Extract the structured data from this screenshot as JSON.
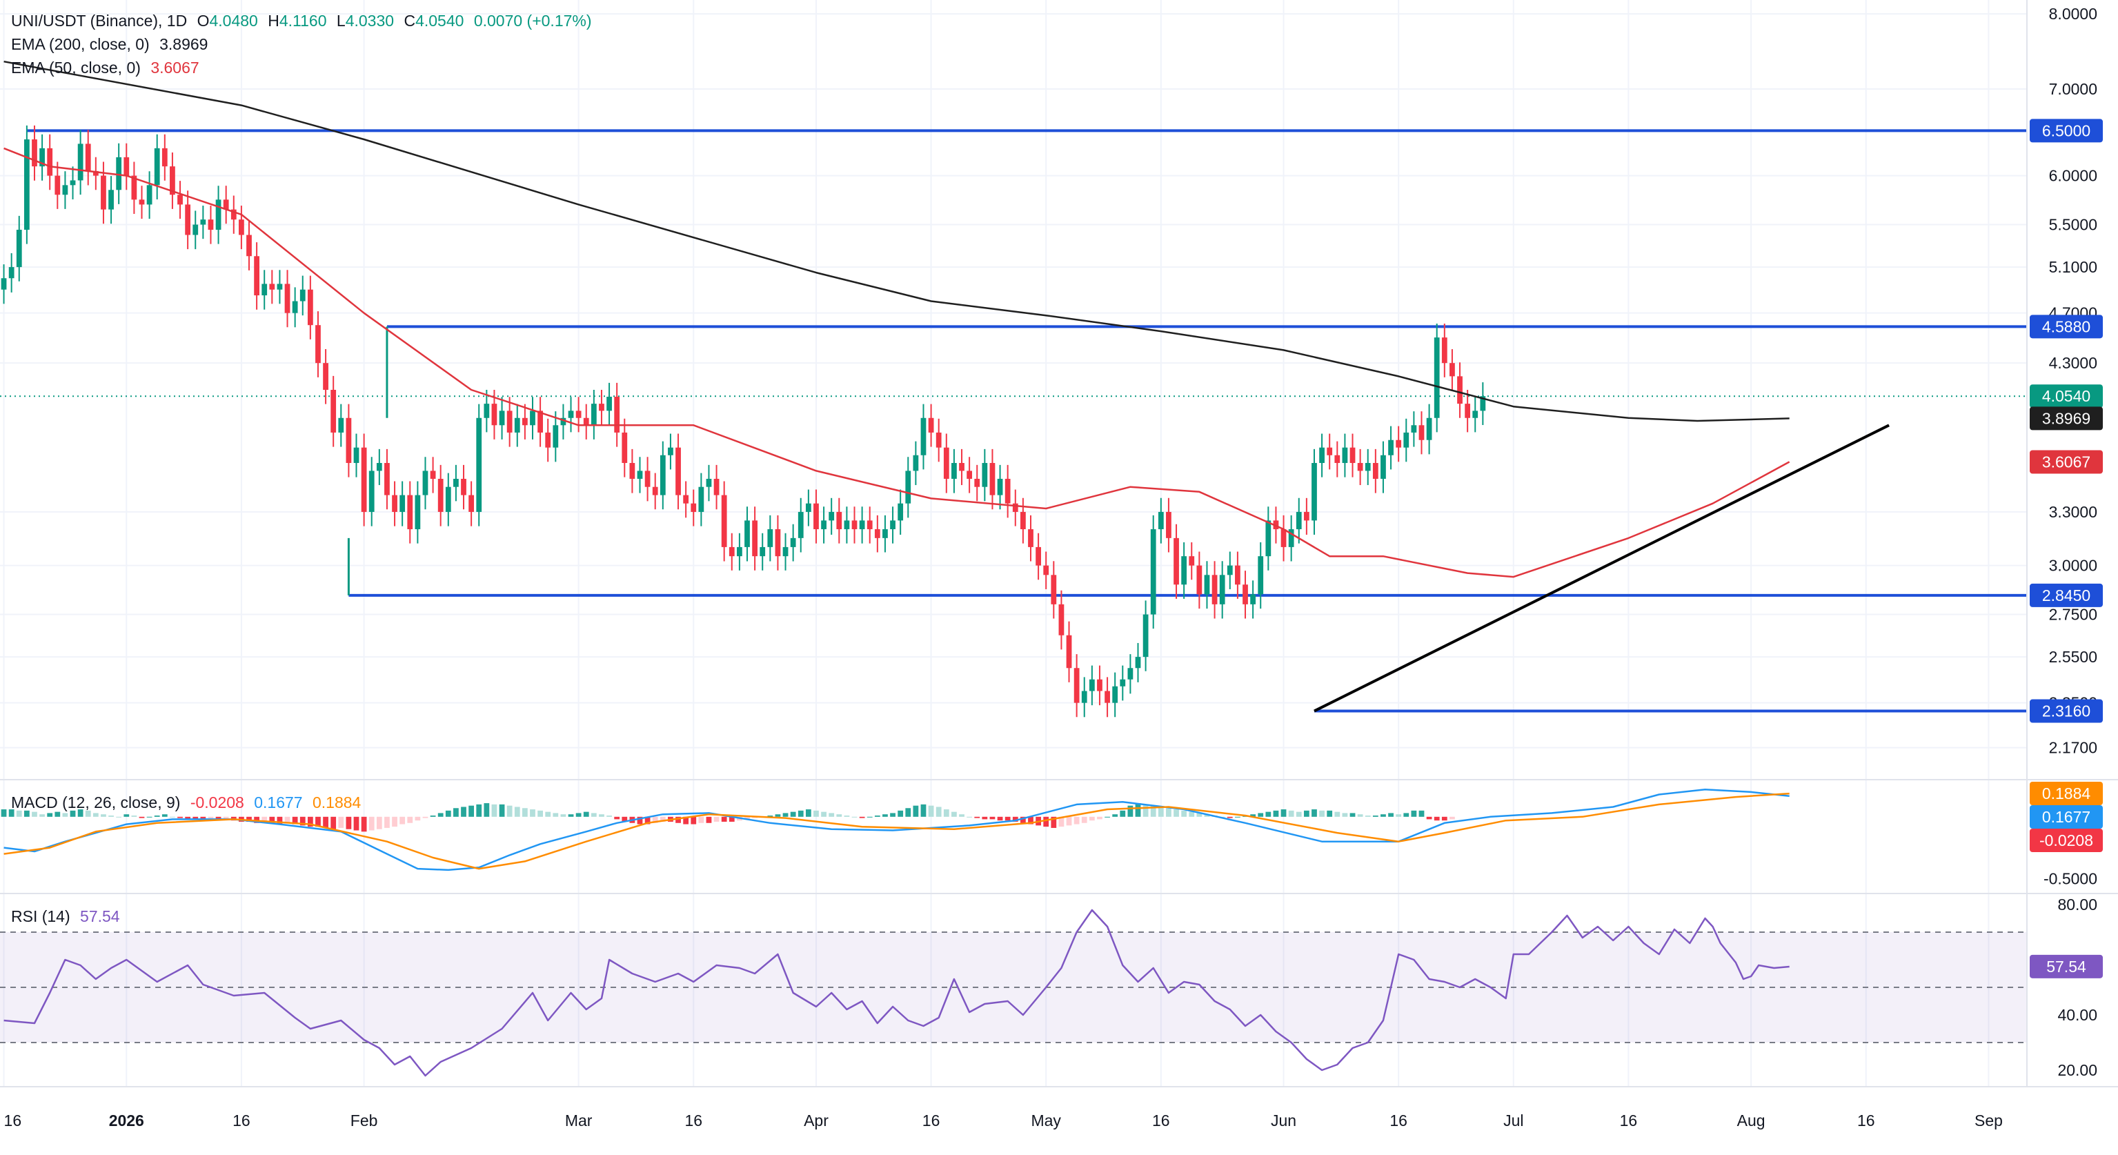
{
  "colors": {
    "up": "#089981",
    "down": "#f23645",
    "hline": "#1e4fd8",
    "ema200": "#1f1f1f",
    "ema50": "#e0353d",
    "macd": "#2196f3",
    "signal": "#ff8c00",
    "rsi": "#7e57c2",
    "trendline": "#000000"
  },
  "header": {
    "symbol": "UNI/USDT (Binance), 1D",
    "o_label": "O",
    "o": "4.0480",
    "h_label": "H",
    "h": "4.1160",
    "l_label": "L",
    "l": "4.0330",
    "c_label": "C",
    "c": "4.0540",
    "change": "0.0070 (+0.17%)",
    "ema200_label": "EMA (200, close, 0)",
    "ema200_value": "3.8969",
    "ema50_label": "EMA (50, close, 0)",
    "ema50_value": "3.6067"
  },
  "macd_legend": {
    "label": "MACD (12, 26, close, 9)",
    "hist": "-0.0208",
    "macd": "0.1677",
    "signal": "0.1884"
  },
  "rsi_legend": {
    "label": "RSI (14)",
    "value": "57.54"
  },
  "chart_data": [
    {
      "type": "candlestick",
      "title": "UNI/USDT (Binance), 1D",
      "y_scale": "log",
      "ylim": [
        2.05,
        8.2
      ],
      "y_ticks": [
        "8.0000",
        "7.0000",
        "6.0000",
        "5.5000",
        "5.1000",
        "4.7000",
        "4.3000",
        "3.3000",
        "3.0000",
        "2.7500",
        "2.5500",
        "2.3500",
        "2.1700"
      ],
      "x_ticks": [
        "16",
        "2026",
        "16",
        "Feb",
        "Mar",
        "16",
        "Apr",
        "16",
        "May",
        "16",
        "Jun",
        "16",
        "Jul",
        "16",
        "Aug",
        "16",
        "Sep"
      ],
      "x_tick_days": [
        -16,
        0,
        15,
        31,
        59,
        74,
        90,
        105,
        120,
        135,
        151,
        166,
        181,
        196,
        212,
        227,
        243
      ],
      "x_range_days": [
        -16.5,
        248
      ],
      "candle_days": [
        -16,
        217
      ],
      "closes": [
        5.0,
        5.1,
        5.45,
        6.4,
        6.1,
        6.3,
        6.0,
        5.8,
        5.9,
        5.95,
        6.35,
        6.05,
        6.0,
        5.65,
        5.85,
        6.2,
        6.0,
        5.75,
        5.7,
        5.9,
        6.3,
        6.1,
        5.8,
        5.7,
        5.4,
        5.5,
        5.55,
        5.45,
        5.75,
        5.65,
        5.55,
        5.4,
        5.2,
        4.85,
        4.95,
        4.9,
        4.95,
        4.7,
        4.8,
        4.9,
        4.6,
        4.3,
        4.1,
        3.8,
        3.9,
        3.6,
        3.7,
        3.3,
        3.55,
        3.6,
        3.4,
        3.3,
        3.4,
        3.2,
        3.4,
        3.55,
        3.5,
        3.3,
        3.45,
        3.5,
        3.4,
        3.3,
        3.9,
        4.0,
        3.85,
        3.95,
        3.8,
        3.9,
        3.85,
        3.95,
        3.8,
        3.7,
        3.85,
        3.9,
        3.95,
        3.9,
        3.85,
        4.0,
        3.95,
        4.05,
        3.8,
        3.6,
        3.5,
        3.55,
        3.45,
        3.4,
        3.65,
        3.7,
        3.4,
        3.35,
        3.3,
        3.45,
        3.5,
        3.4,
        3.1,
        3.05,
        3.1,
        3.25,
        3.05,
        3.1,
        3.2,
        3.05,
        3.1,
        3.15,
        3.3,
        3.35,
        3.2,
        3.25,
        3.3,
        3.2,
        3.25,
        3.2,
        3.25,
        3.2,
        3.15,
        3.2,
        3.25,
        3.35,
        3.55,
        3.65,
        3.9,
        3.8,
        3.7,
        3.5,
        3.6,
        3.55,
        3.5,
        3.45,
        3.6,
        3.4,
        3.5,
        3.35,
        3.3,
        3.2,
        3.1,
        3.0,
        2.95,
        2.8,
        2.65,
        2.5,
        2.35,
        2.4,
        2.45,
        2.4,
        2.35,
        2.42,
        2.45,
        2.5,
        2.55,
        2.75,
        3.2,
        3.3,
        3.15,
        2.9,
        3.05,
        3.0,
        2.85,
        2.95,
        2.8,
        2.95,
        3.0,
        2.9,
        2.8,
        2.85,
        3.05,
        3.25,
        3.2,
        3.1,
        3.2,
        3.3,
        3.25,
        3.6,
        3.7,
        3.65,
        3.6,
        3.7,
        3.6,
        3.55,
        3.6,
        3.5,
        3.65,
        3.75,
        3.7,
        3.8,
        3.85,
        3.75,
        3.9,
        4.5,
        4.3,
        4.2,
        4.0,
        3.9,
        3.95,
        4.054
      ],
      "ema200_points": [
        [
          -16,
          7.35
        ],
        [
          -5,
          7.15
        ],
        [
          15,
          6.8
        ],
        [
          31,
          6.4
        ],
        [
          59,
          5.7
        ],
        [
          90,
          5.05
        ],
        [
          105,
          4.8
        ],
        [
          120,
          4.68
        ],
        [
          135,
          4.55
        ],
        [
          151,
          4.4
        ],
        [
          166,
          4.2
        ],
        [
          181,
          3.98
        ],
        [
          196,
          3.9
        ],
        [
          205,
          3.88
        ],
        [
          217,
          3.897
        ]
      ],
      "ema50_points": [
        [
          -16,
          6.3
        ],
        [
          -10,
          6.1
        ],
        [
          0,
          6.0
        ],
        [
          15,
          5.6
        ],
        [
          31,
          4.7
        ],
        [
          45,
          4.1
        ],
        [
          59,
          3.85
        ],
        [
          74,
          3.85
        ],
        [
          90,
          3.55
        ],
        [
          105,
          3.38
        ],
        [
          120,
          3.32
        ],
        [
          131,
          3.45
        ],
        [
          140,
          3.42
        ],
        [
          151,
          3.2
        ],
        [
          157,
          3.05
        ],
        [
          164,
          3.05
        ],
        [
          175,
          2.96
        ],
        [
          181,
          2.94
        ],
        [
          196,
          3.15
        ],
        [
          207,
          3.35
        ],
        [
          217,
          3.607
        ]
      ],
      "horizontal_levels": [
        {
          "value": 6.5,
          "label": "6.5000",
          "from_day": -13
        },
        {
          "value": 4.588,
          "label": "4.5880",
          "from_day": 34
        },
        {
          "value": 2.845,
          "label": "2.8450",
          "from_day": 29
        },
        {
          "value": 2.316,
          "label": "2.3160",
          "from_day": 155
        }
      ],
      "trendline": {
        "from": [
          155,
          2.316
        ],
        "to": [
          230,
          3.85
        ]
      },
      "last_price": {
        "value": 4.054,
        "label": "4.0540"
      },
      "price_labels": [
        {
          "value": 3.8969,
          "label": "3.8969"
        },
        {
          "value": 3.6067,
          "label": "3.6067"
        }
      ]
    },
    {
      "type": "line",
      "title": "MACD (12, 26, close, 9)",
      "ylim": [
        -0.62,
        0.3
      ],
      "y_ticks": [
        {
          "value": -0.5,
          "label": "-0.5000"
        }
      ],
      "histogram_start_day": -16,
      "histogram": [
        0.06,
        0.06,
        0.05,
        0.05,
        0.04,
        0.02,
        0.03,
        0.04,
        0.03,
        0.05,
        0.06,
        0.05,
        0.03,
        0.02,
        0.01,
        0.0,
        0.02,
        0.01,
        -0.01,
        0.0,
        0.01,
        0.02,
        0.0,
        -0.01,
        -0.02,
        -0.02,
        -0.03,
        -0.02,
        -0.03,
        -0.02,
        -0.03,
        -0.04,
        -0.04,
        -0.05,
        -0.04,
        -0.05,
        -0.06,
        -0.05,
        -0.06,
        -0.07,
        -0.08,
        -0.08,
        -0.09,
        -0.1,
        -0.09,
        -0.1,
        -0.11,
        -0.12,
        -0.11,
        -0.1,
        -0.09,
        -0.08,
        -0.06,
        -0.05,
        -0.03,
        -0.01,
        0.01,
        0.03,
        0.05,
        0.07,
        0.08,
        0.09,
        0.1,
        0.11,
        0.1,
        0.1,
        0.09,
        0.08,
        0.07,
        0.06,
        0.05,
        0.04,
        0.03,
        0.02,
        0.02,
        0.03,
        0.04,
        0.03,
        0.02,
        0.01,
        -0.02,
        -0.04,
        -0.05,
        -0.06,
        -0.06,
        -0.05,
        -0.04,
        -0.04,
        -0.05,
        -0.06,
        -0.06,
        -0.05,
        -0.05,
        -0.04,
        -0.04,
        -0.04,
        -0.03,
        -0.02,
        -0.01,
        0.0,
        0.01,
        0.02,
        0.03,
        0.04,
        0.05,
        0.06,
        0.05,
        0.04,
        0.03,
        0.02,
        0.01,
        0.0,
        -0.01,
        0.0,
        0.01,
        0.02,
        0.03,
        0.05,
        0.07,
        0.09,
        0.1,
        0.09,
        0.08,
        0.06,
        0.04,
        0.02,
        0.0,
        -0.01,
        -0.02,
        -0.02,
        -0.03,
        -0.03,
        -0.04,
        -0.05,
        -0.06,
        -0.07,
        -0.08,
        -0.09,
        -0.08,
        -0.07,
        -0.06,
        -0.05,
        -0.03,
        -0.02,
        0.0,
        0.02,
        0.05,
        0.09,
        0.11,
        0.1,
        0.09,
        0.08,
        0.07,
        0.06,
        0.05,
        0.04,
        0.03,
        0.02,
        0.01,
        0.0,
        -0.01,
        0.0,
        0.01,
        0.02,
        0.03,
        0.04,
        0.05,
        0.06,
        0.05,
        0.04,
        0.05,
        0.06,
        0.05,
        0.05,
        0.04,
        0.03,
        0.03,
        0.02,
        0.01,
        0.01,
        0.02,
        0.03,
        0.02,
        0.03,
        0.05,
        0.05,
        -0.02,
        -0.03,
        -0.03,
        -0.02
      ],
      "macd_points": [
        [
          -16,
          -0.25
        ],
        [
          -12,
          -0.28
        ],
        [
          -8,
          -0.2
        ],
        [
          0,
          -0.06
        ],
        [
          6,
          -0.02
        ],
        [
          14,
          -0.02
        ],
        [
          20,
          -0.06
        ],
        [
          28,
          -0.12
        ],
        [
          34,
          -0.3
        ],
        [
          38,
          -0.42
        ],
        [
          42,
          -0.43
        ],
        [
          46,
          -0.41
        ],
        [
          50,
          -0.31
        ],
        [
          54,
          -0.22
        ],
        [
          60,
          -0.12
        ],
        [
          64,
          -0.05
        ],
        [
          70,
          0.02
        ],
        [
          76,
          0.03
        ],
        [
          84,
          -0.05
        ],
        [
          92,
          -0.1
        ],
        [
          100,
          -0.11
        ],
        [
          110,
          -0.07
        ],
        [
          116,
          -0.03
        ],
        [
          124,
          0.1
        ],
        [
          130,
          0.12
        ],
        [
          138,
          0.06
        ],
        [
          146,
          -0.05
        ],
        [
          156,
          -0.2
        ],
        [
          166,
          -0.2
        ],
        [
          172,
          -0.05
        ],
        [
          178,
          0.0
        ],
        [
          186,
          0.03
        ],
        [
          194,
          0.08
        ],
        [
          200,
          0.18
        ],
        [
          206,
          0.22
        ],
        [
          212,
          0.2
        ],
        [
          217,
          0.168
        ]
      ],
      "signal_points": [
        [
          -16,
          -0.3
        ],
        [
          -10,
          -0.25
        ],
        [
          -4,
          -0.12
        ],
        [
          4,
          -0.05
        ],
        [
          14,
          -0.02
        ],
        [
          24,
          -0.06
        ],
        [
          34,
          -0.2
        ],
        [
          40,
          -0.33
        ],
        [
          46,
          -0.42
        ],
        [
          52,
          -0.36
        ],
        [
          60,
          -0.2
        ],
        [
          68,
          -0.05
        ],
        [
          76,
          0.02
        ],
        [
          86,
          -0.01
        ],
        [
          96,
          -0.08
        ],
        [
          108,
          -0.1
        ],
        [
          118,
          -0.05
        ],
        [
          128,
          0.06
        ],
        [
          136,
          0.08
        ],
        [
          146,
          0.01
        ],
        [
          158,
          -0.13
        ],
        [
          166,
          -0.2
        ],
        [
          172,
          -0.13
        ],
        [
          180,
          -0.03
        ],
        [
          190,
          0.0
        ],
        [
          200,
          0.1
        ],
        [
          210,
          0.16
        ],
        [
          217,
          0.188
        ]
      ],
      "value_labels": [
        {
          "value": 0.1884,
          "label": "0.1884",
          "series": "signal"
        },
        {
          "value": 0.1677,
          "label": "0.1677",
          "series": "macd"
        },
        {
          "value": -0.0208,
          "label": "-0.0208",
          "series": "hist"
        }
      ]
    },
    {
      "type": "line",
      "title": "RSI (14)",
      "ylim": [
        14,
        84
      ],
      "y_ticks": [
        {
          "value": 80,
          "label": "80.00"
        },
        {
          "value": 40,
          "label": "40.00"
        },
        {
          "value": 20,
          "label": "20.00"
        }
      ],
      "band": [
        30,
        70
      ],
      "midline": 50,
      "points": [
        [
          -16,
          38
        ],
        [
          -12,
          37
        ],
        [
          -10,
          48
        ],
        [
          -8,
          60
        ],
        [
          -6,
          58
        ],
        [
          -4,
          53
        ],
        [
          -2,
          57
        ],
        [
          0,
          60
        ],
        [
          4,
          52
        ],
        [
          8,
          58
        ],
        [
          10,
          51
        ],
        [
          14,
          47
        ],
        [
          18,
          48
        ],
        [
          22,
          39
        ],
        [
          24,
          35
        ],
        [
          28,
          38
        ],
        [
          31,
          31
        ],
        [
          33,
          28
        ],
        [
          35,
          22
        ],
        [
          37,
          25
        ],
        [
          39,
          18
        ],
        [
          41,
          23
        ],
        [
          45,
          28
        ],
        [
          49,
          35
        ],
        [
          53,
          48
        ],
        [
          55,
          38
        ],
        [
          58,
          48
        ],
        [
          60,
          42
        ],
        [
          62,
          46
        ],
        [
          63,
          60
        ],
        [
          66,
          55
        ],
        [
          69,
          52
        ],
        [
          72,
          55
        ],
        [
          74,
          52
        ],
        [
          77,
          58
        ],
        [
          80,
          57
        ],
        [
          82,
          55
        ],
        [
          85,
          62
        ],
        [
          87,
          48
        ],
        [
          90,
          43
        ],
        [
          92,
          48
        ],
        [
          94,
          42
        ],
        [
          96,
          45
        ],
        [
          98,
          37
        ],
        [
          100,
          43
        ],
        [
          102,
          38
        ],
        [
          104,
          36
        ],
        [
          106,
          39
        ],
        [
          108,
          53
        ],
        [
          110,
          41
        ],
        [
          112,
          44
        ],
        [
          115,
          45
        ],
        [
          117,
          40
        ],
        [
          120,
          50
        ],
        [
          122,
          57
        ],
        [
          124,
          70
        ],
        [
          126,
          78
        ],
        [
          128,
          72
        ],
        [
          130,
          58
        ],
        [
          132,
          52
        ],
        [
          134,
          57
        ],
        [
          136,
          48
        ],
        [
          138,
          52
        ],
        [
          140,
          51
        ],
        [
          142,
          45
        ],
        [
          144,
          42
        ],
        [
          146,
          36
        ],
        [
          148,
          40
        ],
        [
          150,
          34
        ],
        [
          152,
          30
        ],
        [
          154,
          24
        ],
        [
          156,
          20
        ],
        [
          158,
          22
        ],
        [
          160,
          28
        ],
        [
          162,
          30
        ],
        [
          164,
          38
        ],
        [
          166,
          62
        ],
        [
          168,
          60
        ],
        [
          170,
          53
        ],
        [
          172,
          52
        ],
        [
          174,
          50
        ],
        [
          176,
          53
        ],
        [
          178,
          50
        ],
        [
          180,
          46
        ],
        [
          181,
          62
        ],
        [
          183,
          62
        ],
        [
          186,
          70
        ],
        [
          188,
          76
        ],
        [
          190,
          68
        ],
        [
          192,
          72
        ],
        [
          194,
          67
        ],
        [
          196,
          72
        ],
        [
          198,
          66
        ],
        [
          200,
          62
        ],
        [
          202,
          71
        ],
        [
          204,
          66
        ],
        [
          206,
          75
        ],
        [
          207,
          72
        ],
        [
          208,
          66
        ],
        [
          210,
          59
        ],
        [
          211,
          53
        ],
        [
          212,
          54
        ],
        [
          213,
          58
        ],
        [
          215,
          57
        ],
        [
          217,
          57.5
        ]
      ],
      "value_labels": [
        {
          "value": 57.54,
          "label": "57.54"
        }
      ]
    }
  ]
}
